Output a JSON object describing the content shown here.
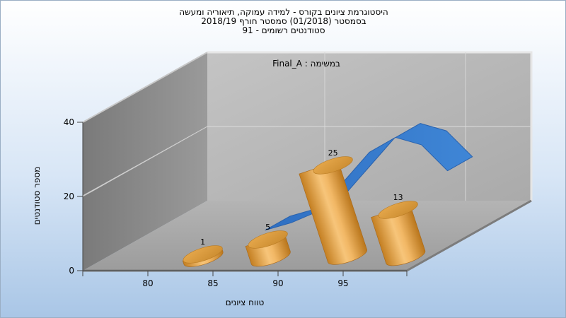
{
  "title": {
    "line1": "היסטוגרמת ציונים בקורס - למידה עמוקה, תיאוריה ומעשה",
    "line2": "בסמסטר  (01/2018)  סמסטר חורף  2018/19",
    "line3": "סטודנטים רשומים - 91"
  },
  "chart_data": {
    "type": "bar",
    "subtype": "3d-cylinder-with-distribution-ribbon",
    "annotation": "במשימה : Final_A",
    "xlabel": "טווח ציונים",
    "ylabel": "מספר סטודנטים",
    "x_ticks": [
      "80",
      "85",
      "90",
      "95"
    ],
    "y_ticks": [
      "0",
      "20",
      "40"
    ],
    "ylim": [
      0,
      40
    ],
    "categories": [
      "80",
      "85",
      "90",
      "95"
    ],
    "values": [
      1,
      5,
      25,
      13
    ],
    "distribution_curve": {
      "x": [
        85,
        87,
        89,
        91,
        93,
        95,
        97,
        99
      ],
      "y": [
        3,
        5,
        8,
        16,
        24,
        28,
        26,
        19
      ]
    },
    "colors": {
      "bar": "#e2a44c",
      "bar_top": "#d89a3d",
      "curve": "#3f7ecf",
      "back_wall": "#b8b8b8",
      "left_wall": "#8a8a8a",
      "floor": "#a6a6a6"
    }
  }
}
